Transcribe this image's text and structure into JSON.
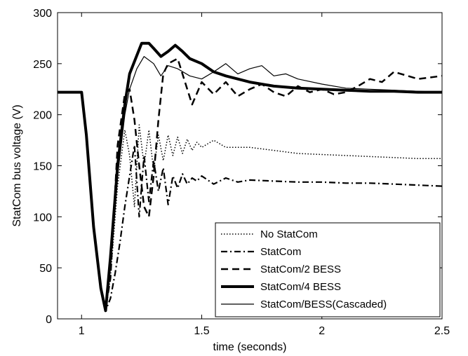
{
  "chart_data": {
    "type": "line",
    "xlabel": "time (seconds)",
    "ylabel": "StatCom bus voltage (V)",
    "xlim": [
      0.9,
      2.5
    ],
    "ylim": [
      0,
      300
    ],
    "xticks": [
      1,
      1.5,
      2,
      2.5
    ],
    "xtick_labels": [
      "1",
      "1.5",
      "2",
      "2.5"
    ],
    "yticks": [
      0,
      50,
      100,
      150,
      200,
      250,
      300
    ],
    "ytick_labels": [
      "0",
      "50",
      "100",
      "150",
      "200",
      "250",
      "300"
    ],
    "grid": false,
    "legend_position": "bottom-right",
    "series": [
      {
        "name": "No StatCom",
        "style": "dotted",
        "color": "#000000",
        "x": [
          0.9,
          1.0,
          1.02,
          1.05,
          1.08,
          1.1,
          1.12,
          1.15,
          1.18,
          1.2,
          1.22,
          1.24,
          1.26,
          1.28,
          1.3,
          1.32,
          1.34,
          1.36,
          1.38,
          1.4,
          1.42,
          1.44,
          1.46,
          1.48,
          1.5,
          1.55,
          1.6,
          1.7,
          1.8,
          1.9,
          2.0,
          2.1,
          2.2,
          2.3,
          2.4,
          2.5
        ],
        "y": [
          222,
          222,
          180,
          90,
          30,
          10,
          40,
          130,
          185,
          160,
          110,
          190,
          150,
          185,
          145,
          180,
          155,
          180,
          160,
          178,
          162,
          176,
          165,
          173,
          168,
          175,
          168,
          168,
          165,
          162,
          161,
          160,
          159,
          158,
          157,
          157
        ]
      },
      {
        "name": "StatCom",
        "style": "dashdot",
        "color": "#000000",
        "x": [
          0.9,
          1.0,
          1.02,
          1.05,
          1.08,
          1.1,
          1.12,
          1.14,
          1.16,
          1.18,
          1.2,
          1.22,
          1.24,
          1.26,
          1.28,
          1.3,
          1.32,
          1.34,
          1.36,
          1.38,
          1.4,
          1.42,
          1.44,
          1.46,
          1.48,
          1.5,
          1.55,
          1.6,
          1.65,
          1.7,
          1.8,
          1.9,
          2.0,
          2.1,
          2.2,
          2.3,
          2.4,
          2.5
        ],
        "y": [
          222,
          222,
          180,
          90,
          30,
          8,
          20,
          45,
          75,
          110,
          140,
          170,
          100,
          160,
          115,
          155,
          125,
          148,
          112,
          140,
          128,
          142,
          132,
          138,
          135,
          140,
          132,
          138,
          134,
          136,
          135,
          134,
          134,
          133,
          133,
          132,
          131,
          130
        ]
      },
      {
        "name": "StatCom/2 BESS",
        "style": "dashed",
        "color": "#000000",
        "x": [
          0.9,
          1.0,
          1.02,
          1.05,
          1.08,
          1.1,
          1.12,
          1.15,
          1.18,
          1.2,
          1.22,
          1.24,
          1.26,
          1.28,
          1.3,
          1.32,
          1.34,
          1.36,
          1.4,
          1.44,
          1.46,
          1.5,
          1.55,
          1.6,
          1.65,
          1.7,
          1.75,
          1.8,
          1.85,
          1.9,
          1.95,
          2.0,
          2.05,
          2.1,
          2.15,
          2.2,
          2.25,
          2.3,
          2.4,
          2.5
        ],
        "y": [
          222,
          222,
          180,
          90,
          30,
          10,
          40,
          170,
          220,
          225,
          195,
          150,
          110,
          100,
          140,
          195,
          240,
          250,
          255,
          225,
          210,
          232,
          220,
          232,
          218,
          225,
          230,
          222,
          218,
          228,
          222,
          225,
          220,
          222,
          228,
          235,
          232,
          242,
          235,
          238
        ]
      },
      {
        "name": "StatCom/4 BESS",
        "style": "thick",
        "color": "#000000",
        "x": [
          0.9,
          1.0,
          1.02,
          1.05,
          1.08,
          1.1,
          1.12,
          1.15,
          1.18,
          1.2,
          1.23,
          1.25,
          1.28,
          1.3,
          1.33,
          1.36,
          1.39,
          1.42,
          1.45,
          1.5,
          1.55,
          1.6,
          1.7,
          1.8,
          1.9,
          2.0,
          2.1,
          2.2,
          2.3,
          2.4,
          2.5
        ],
        "y": [
          222,
          222,
          180,
          90,
          30,
          8,
          60,
          150,
          210,
          240,
          258,
          270,
          270,
          265,
          257,
          262,
          268,
          262,
          255,
          250,
          242,
          238,
          232,
          228,
          226,
          225,
          224,
          223,
          223,
          222,
          222
        ]
      },
      {
        "name": "StatCom/BESS(Cascaded)",
        "style": "thin",
        "color": "#000000",
        "x": [
          0.9,
          1.0,
          1.02,
          1.05,
          1.08,
          1.1,
          1.12,
          1.15,
          1.18,
          1.2,
          1.23,
          1.26,
          1.3,
          1.33,
          1.36,
          1.4,
          1.45,
          1.5,
          1.55,
          1.6,
          1.65,
          1.7,
          1.75,
          1.8,
          1.85,
          1.9,
          2.0,
          2.1,
          2.2,
          2.3,
          2.4,
          2.5
        ],
        "y": [
          222,
          222,
          180,
          90,
          30,
          10,
          55,
          140,
          200,
          225,
          245,
          257,
          250,
          238,
          248,
          245,
          238,
          235,
          242,
          250,
          240,
          245,
          248,
          238,
          240,
          235,
          230,
          226,
          225,
          224,
          223,
          222
        ]
      }
    ]
  }
}
